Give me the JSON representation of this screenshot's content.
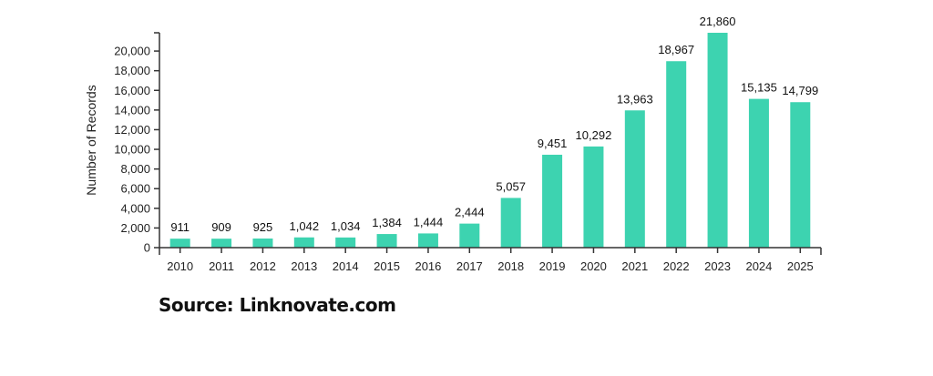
{
  "chart_data": {
    "type": "bar",
    "title": "",
    "xlabel": "",
    "ylabel": "Number of Records",
    "categories": [
      "2010",
      "2011",
      "2012",
      "2013",
      "2014",
      "2015",
      "2016",
      "2017",
      "2018",
      "2019",
      "2020",
      "2021",
      "2022",
      "2023",
      "2024",
      "2025"
    ],
    "values": [
      911,
      909,
      925,
      1042,
      1034,
      1384,
      1444,
      2444,
      5057,
      9451,
      10292,
      13963,
      18967,
      21860,
      15135,
      14799
    ],
    "data_labels": [
      "911",
      "909",
      "925",
      "1,042",
      "1,034",
      "1,384",
      "1,444",
      "2,444",
      "5,057",
      "9,451",
      "10,292",
      "13,963",
      "18,967",
      "21,860",
      "15,135",
      "14,799"
    ],
    "yticks": [
      0,
      2000,
      4000,
      6000,
      8000,
      10000,
      12000,
      14000,
      16000,
      18000,
      20000
    ],
    "ytick_labels": [
      "0",
      "2,000",
      "4,000",
      "6,000",
      "8,000",
      "10,000",
      "12,000",
      "14,000",
      "16,000",
      "18,000",
      "20,000"
    ],
    "ylim": [
      0,
      21860
    ],
    "grid": false,
    "bar_color": "#3dd3b0",
    "annotation": "Source: Linknovate.com"
  }
}
